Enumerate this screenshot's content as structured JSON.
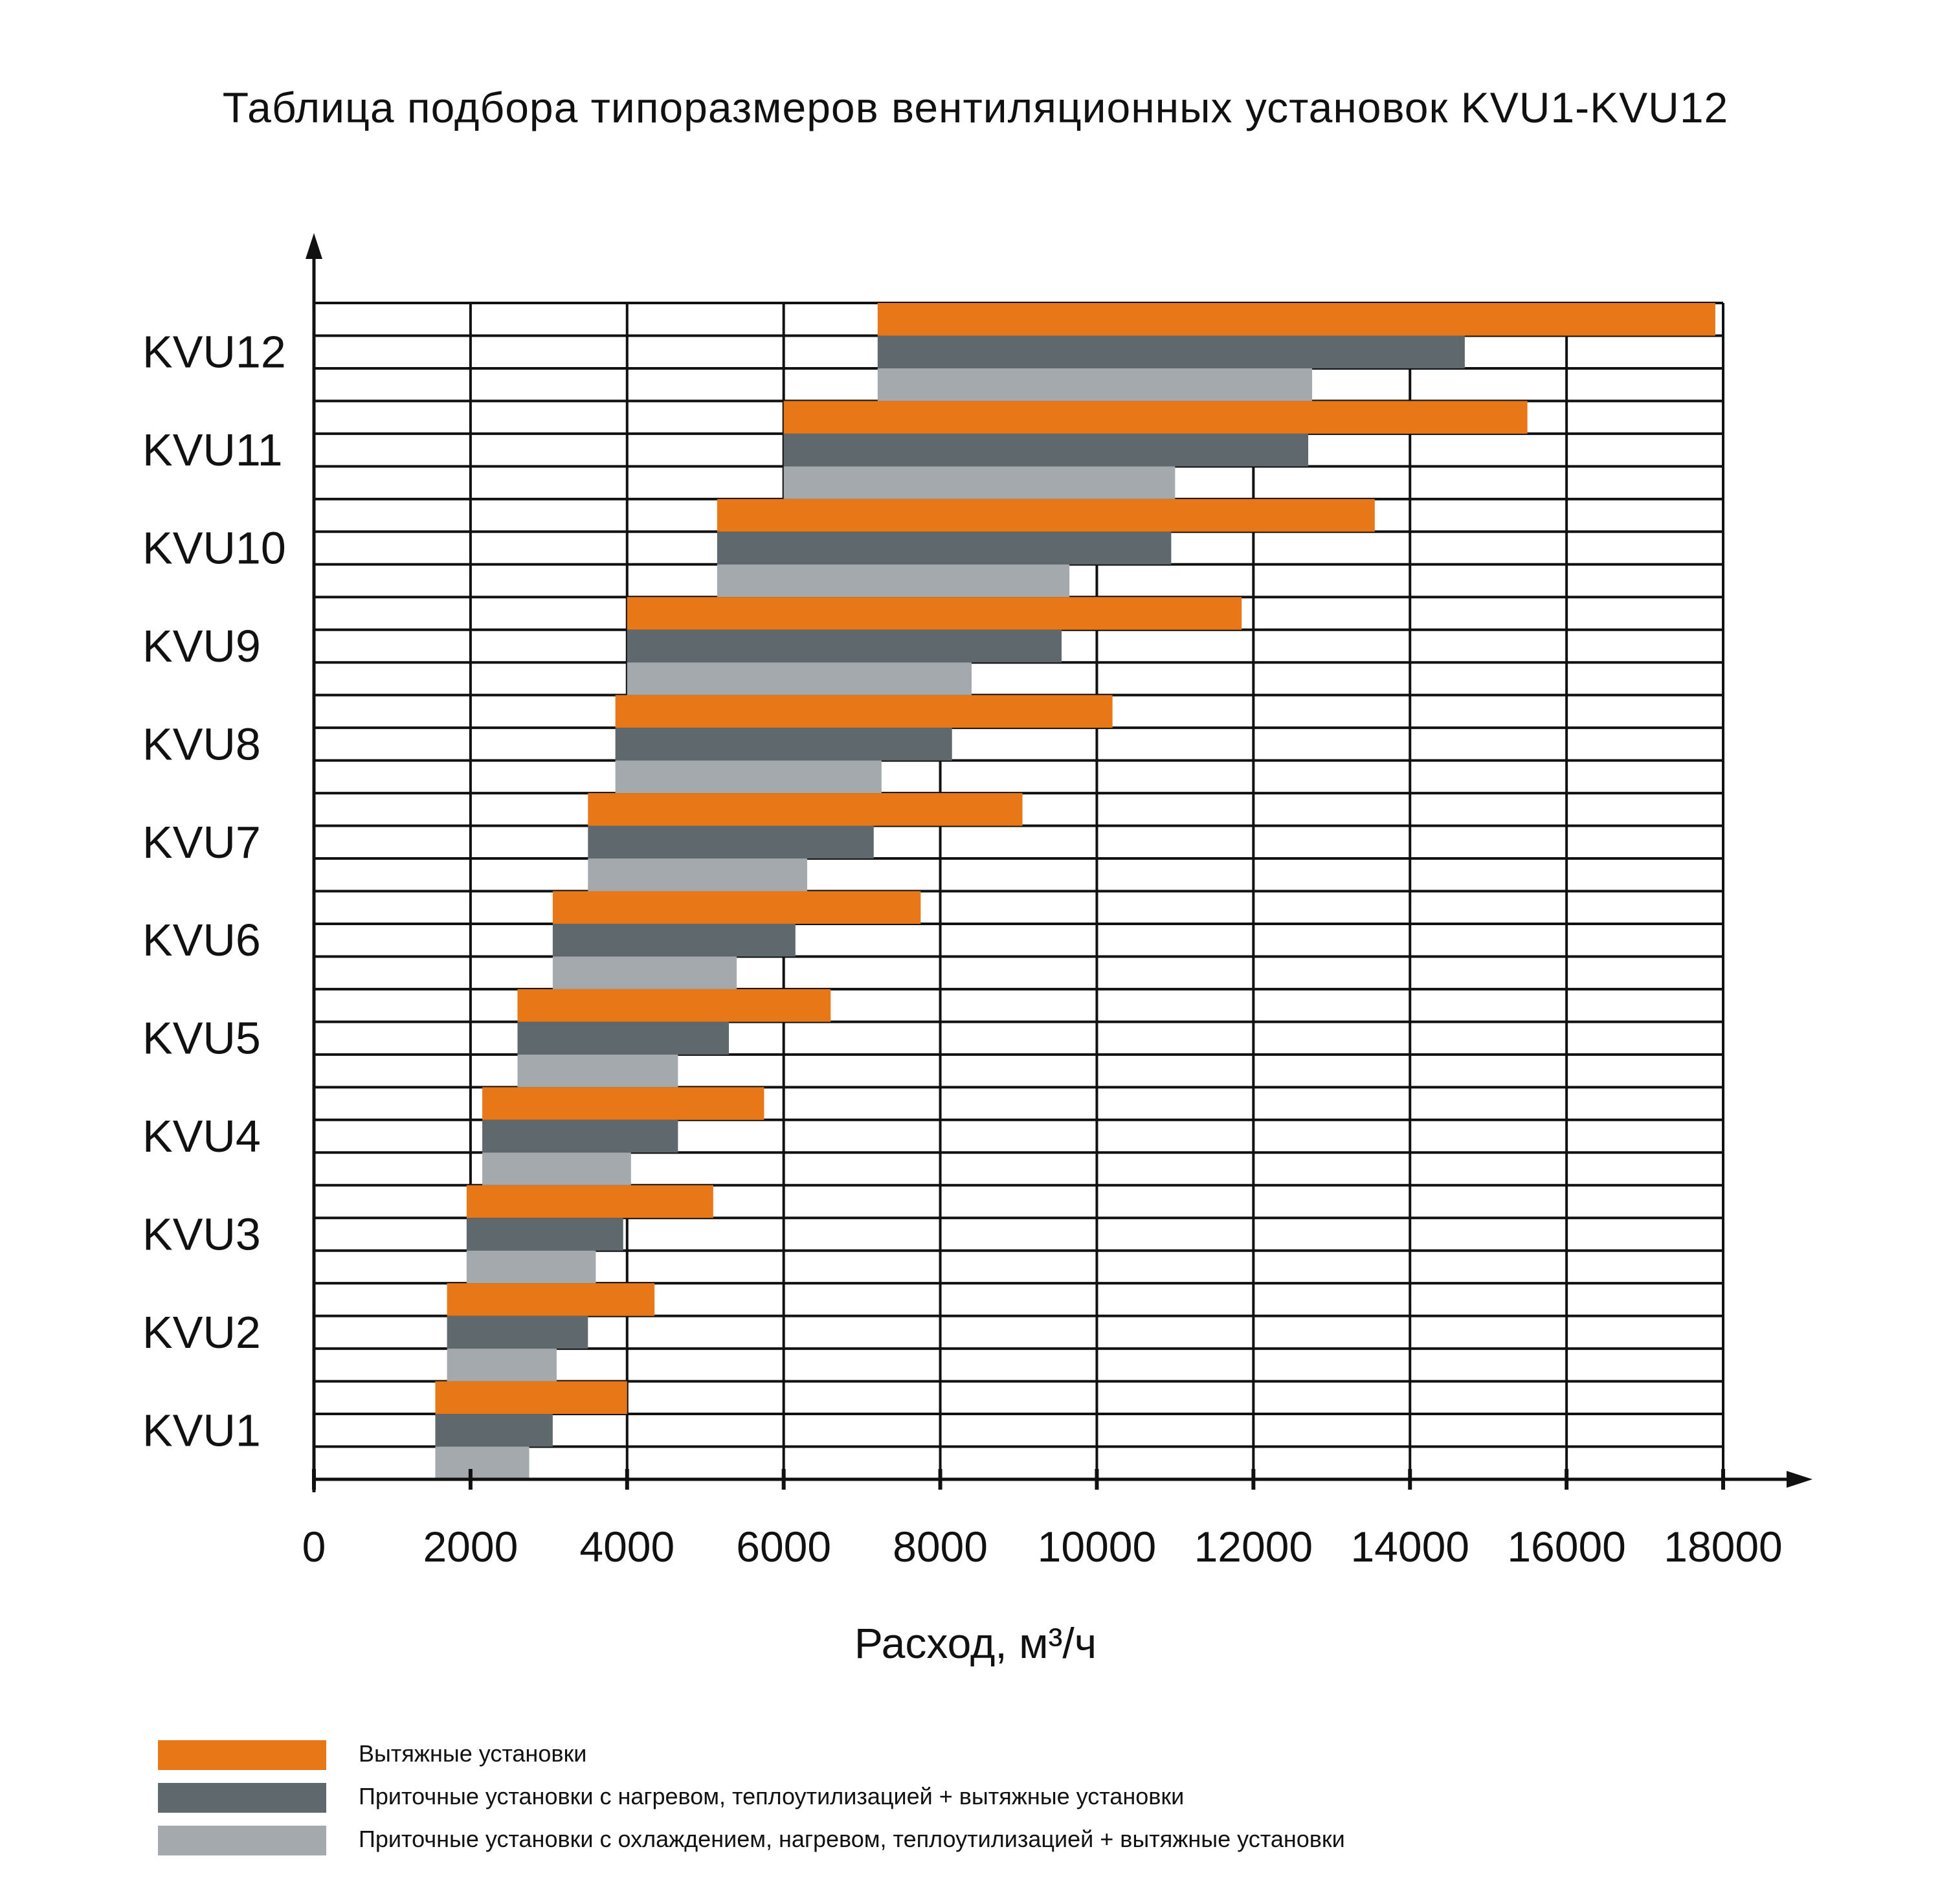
{
  "chart_data": {
    "type": "bar",
    "orientation": "horizontal",
    "title": "Таблица подбора типоразмеров вентиляционных установок KVU1-KVU12",
    "xlabel": "Расход, м³/ч",
    "ylabel": "",
    "xlim": [
      0,
      18000
    ],
    "x_ticks": [
      "0",
      "2000",
      "4000",
      "6000",
      "8000",
      "10000",
      "12000",
      "14000",
      "16000",
      "18000"
    ],
    "grid": true,
    "legend_position": "bottom-left",
    "categories": [
      "KVU12",
      "KVU11",
      "KVU10",
      "KVU9",
      "KVU8",
      "KVU7",
      "KVU6",
      "KVU5",
      "KVU4",
      "KVU3",
      "KVU2",
      "KVU1"
    ],
    "series": [
      {
        "name": "Вытяжные установки",
        "color": "#E87817",
        "ranges": [
          [
            7200,
            17900
          ],
          [
            6000,
            15500
          ],
          [
            5150,
            13550
          ],
          [
            4000,
            11850
          ],
          [
            3850,
            10200
          ],
          [
            3500,
            9050
          ],
          [
            3050,
            7750
          ],
          [
            2600,
            6600
          ],
          [
            2150,
            5750
          ],
          [
            1950,
            5100
          ],
          [
            1700,
            4350
          ],
          [
            1550,
            4000
          ]
        ]
      },
      {
        "name": "Приточные установки с нагревом, теплоутилизацией + вытяжные установки",
        "color": "#5F686D",
        "ranges": [
          [
            7200,
            14700
          ],
          [
            6000,
            12700
          ],
          [
            5150,
            10950
          ],
          [
            4000,
            9550
          ],
          [
            3850,
            8150
          ],
          [
            3500,
            7150
          ],
          [
            3050,
            6150
          ],
          [
            2600,
            5300
          ],
          [
            2150,
            4650
          ],
          [
            1950,
            3950
          ],
          [
            1700,
            3500
          ],
          [
            1550,
            3050
          ]
        ]
      },
      {
        "name": "Приточные установки с охлаждением, нагревом, теплоутилизацией + вытяжные установки",
        "color": "#A4A9AE",
        "ranges": [
          [
            7200,
            12750
          ],
          [
            6000,
            11000
          ],
          [
            5150,
            9650
          ],
          [
            4000,
            8400
          ],
          [
            3850,
            7250
          ],
          [
            3500,
            6300
          ],
          [
            3050,
            5400
          ],
          [
            2600,
            4650
          ],
          [
            2150,
            4050
          ],
          [
            1950,
            3600
          ],
          [
            1700,
            3100
          ],
          [
            1550,
            2750
          ]
        ]
      }
    ]
  }
}
